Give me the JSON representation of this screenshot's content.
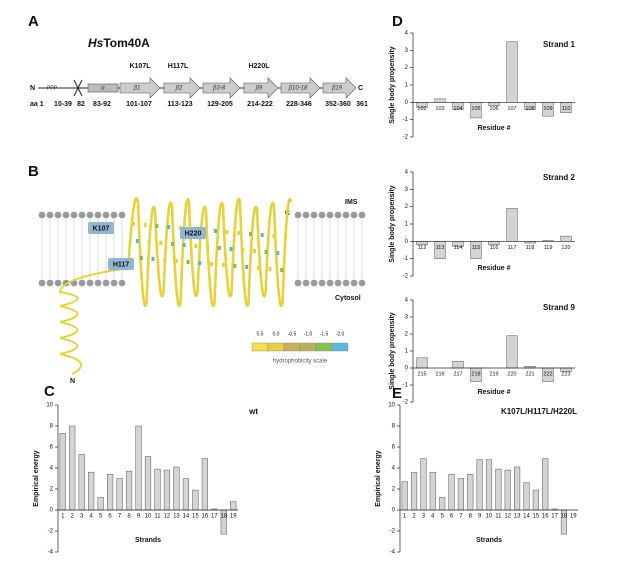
{
  "panel_labels": [
    "A",
    "B",
    "C",
    "D",
    "E"
  ],
  "diagram_a": {
    "title_italic": "Hs",
    "title_rest": "Tom40A",
    "n_label": "N",
    "ppp": "PPP",
    "c_label": "C",
    "mutations": [
      "K107L",
      "H117L",
      "H220L"
    ],
    "segments": [
      "α",
      "β1",
      "β2",
      "β3-8",
      "β9",
      "β10-18",
      "β19"
    ],
    "positions": [
      "aa 1",
      "10-39",
      "82",
      "83-92",
      "101-107",
      "113-123",
      "129-205",
      "214-222",
      "228-346",
      "352-360",
      "361"
    ]
  },
  "diagram_b": {
    "ims": "IMS",
    "cytosol": "Cytosol",
    "residues": [
      "K107",
      "H117",
      "H220"
    ],
    "c_label": "C",
    "n_label": "N",
    "scale_labels": [
      "0.5",
      "0.0",
      "-0.5",
      "-1.0",
      "-1.5",
      "-2.0"
    ],
    "scale_title": "hydrophobicity scale"
  },
  "chart_data": [
    {
      "type": "bar",
      "title": "wt",
      "xlabel": "Strands",
      "ylabel": "Empirical energy",
      "categories": [
        "1",
        "2",
        "3",
        "4",
        "5",
        "6",
        "7",
        "8",
        "9",
        "10",
        "11",
        "12",
        "13",
        "14",
        "15",
        "16",
        "17",
        "18",
        "19"
      ],
      "values": [
        7.3,
        8,
        5.3,
        3.6,
        1.2,
        3.4,
        3.0,
        3.7,
        8.0,
        5.1,
        3.9,
        3.8,
        4.1,
        3.0,
        1.9,
        4.9,
        0.1,
        -2.3,
        0.8
      ],
      "color": "#d4d4d4",
      "ylim": [
        -4,
        10
      ],
      "yticks": [
        -4,
        -2,
        0,
        2,
        4,
        6,
        8,
        10
      ]
    },
    {
      "type": "bar",
      "title": "K107L/H117L/H220L",
      "xlabel": "Strands",
      "ylabel": "Empirical energy",
      "categories": [
        "1",
        "2",
        "3",
        "4",
        "5",
        "6",
        "7",
        "8",
        "9",
        "10",
        "11",
        "12",
        "13",
        "14",
        "15",
        "16",
        "17",
        "18",
        "19"
      ],
      "values": [
        2.7,
        3.6,
        4.9,
        3.6,
        1.2,
        3.4,
        3.0,
        3.4,
        4.8,
        4.8,
        3.9,
        3.8,
        4.1,
        2.6,
        1.9,
        4.9,
        0.1,
        -2.3,
        0
      ],
      "color": "#d4d4d4",
      "ylim": [
        -4,
        10
      ],
      "yticks": [
        -4,
        -2,
        0,
        2,
        4,
        6,
        8,
        10
      ]
    },
    {
      "type": "bar",
      "title": "Strand 1",
      "xlabel": "Residue #",
      "ylabel": "Single body propensity",
      "categories": [
        "102",
        "103",
        "104",
        "105",
        "106",
        "107",
        "108",
        "109",
        "110"
      ],
      "values": [
        -0.3,
        0.2,
        -0.4,
        -0.9,
        -0.2,
        3.5,
        -0.4,
        -0.8,
        -0.6
      ],
      "color": "#d4d4d4",
      "ylim": [
        -2,
        4
      ],
      "yticks": [
        -2,
        -1,
        0,
        1,
        2,
        3,
        4
      ]
    },
    {
      "type": "bar",
      "title": "Strand 2",
      "xlabel": "Residue #",
      "ylabel": "Single body propensity",
      "categories": [
        "112",
        "113",
        "114",
        "115",
        "116",
        "117",
        "118",
        "119",
        "120"
      ],
      "values": [
        -0.2,
        -1.0,
        -0.3,
        -1.0,
        -0.2,
        1.9,
        -0.1,
        0.05,
        0.3
      ],
      "color": "#d4d4d4",
      "ylim": [
        -2,
        4
      ],
      "yticks": [
        -2,
        -1,
        0,
        1,
        2,
        3,
        4
      ]
    },
    {
      "type": "bar",
      "title": "Strand 9",
      "xlabel": "Residue #",
      "ylabel": "Single body propensity",
      "categories": [
        "215",
        "216",
        "217",
        "218",
        "219",
        "220",
        "221",
        "222",
        "223"
      ],
      "values": [
        0.6,
        0,
        0.4,
        -0.8,
        0,
        1.9,
        0.1,
        -0.8,
        -0.2
      ],
      "color": "#d4d4d4",
      "ylim": [
        -2,
        4
      ],
      "yticks": [
        -2,
        -1,
        0,
        1,
        2,
        3,
        4
      ]
    }
  ]
}
